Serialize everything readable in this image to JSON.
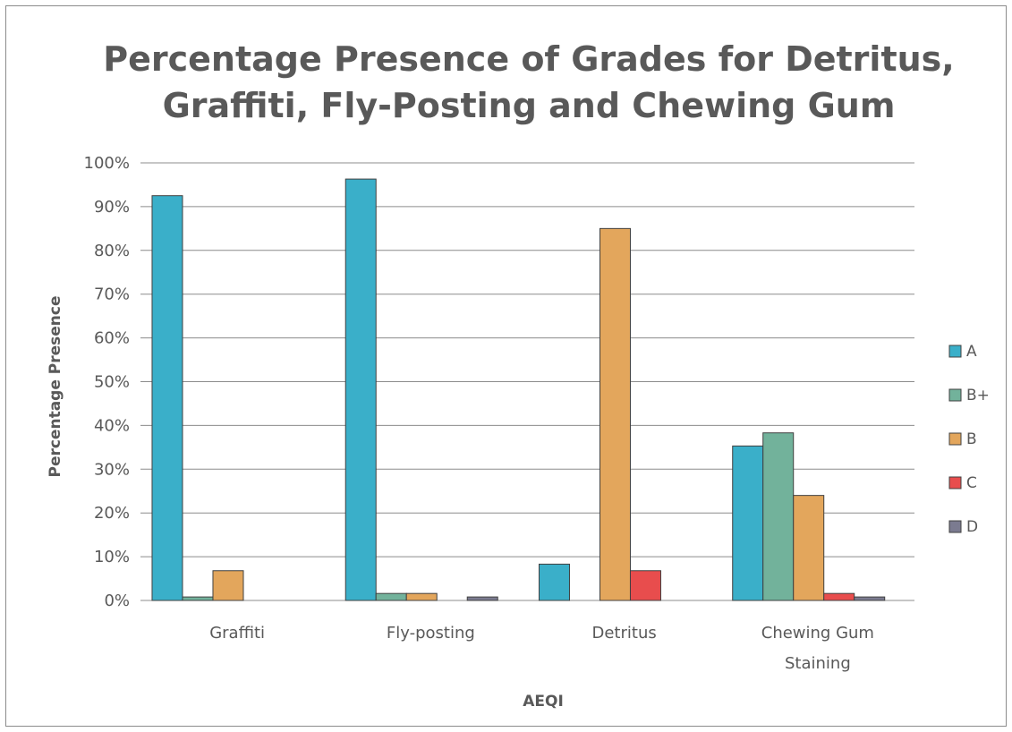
{
  "chart_data": {
    "type": "bar",
    "title_lines": [
      "Percentage Presence of Grades for Detritus,",
      "Graffiti, Fly-Posting and Chewing Gum"
    ],
    "xlabel": "AEQI",
    "ylabel": "Percentage Presence",
    "ylim": [
      0,
      100
    ],
    "yticks": [
      "0%",
      "10%",
      "20%",
      "30%",
      "40%",
      "50%",
      "60%",
      "70%",
      "80%",
      "90%",
      "100%"
    ],
    "categories": [
      [
        "Graffiti"
      ],
      [
        "Fly-posting"
      ],
      [
        "Detritus"
      ],
      [
        "Chewing Gum",
        "Staining"
      ]
    ],
    "series": [
      {
        "name": "A",
        "color": "#3aafc9",
        "values": [
          92.5,
          96.3,
          8.3,
          35.3
        ]
      },
      {
        "name": "B+",
        "color": "#72b29b",
        "values": [
          0.8,
          1.6,
          0,
          38.3
        ]
      },
      {
        "name": "B",
        "color": "#e3a65c",
        "values": [
          6.8,
          1.6,
          85.0,
          24.0
        ]
      },
      {
        "name": "C",
        "color": "#e84d4d",
        "values": [
          0,
          0,
          6.8,
          1.6
        ]
      },
      {
        "name": "D",
        "color": "#7b7b90",
        "values": [
          0,
          0.8,
          0,
          0.8
        ]
      }
    ],
    "grid": true,
    "legend_position": "right"
  }
}
